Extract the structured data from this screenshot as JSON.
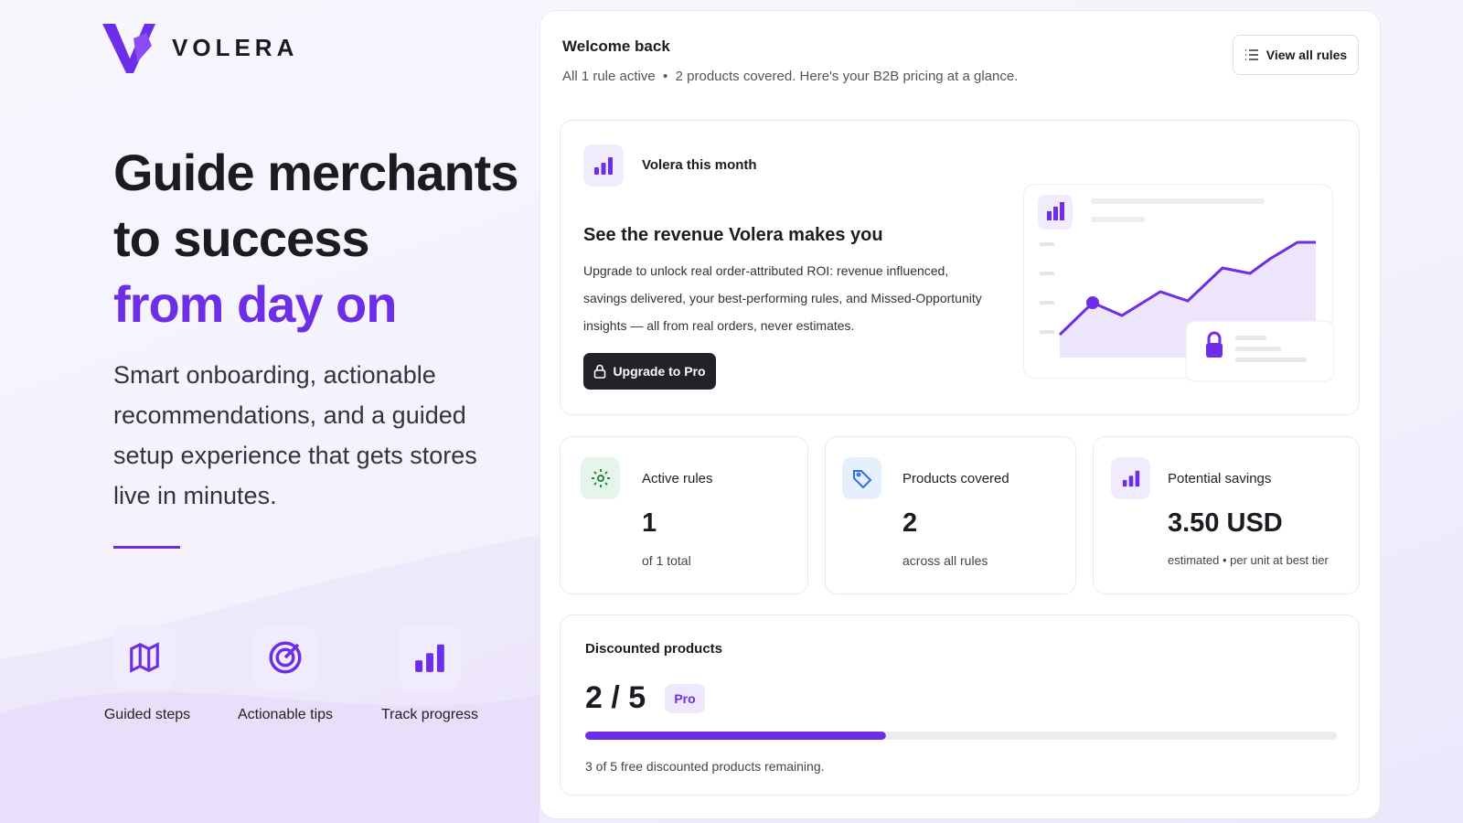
{
  "brand": "VOLERA",
  "hero": {
    "title_line1": "Guide merchants",
    "title_line2": "to success",
    "title_highlight": "from day on",
    "description": "Smart onboarding, actionable recommendations, and a guided setup experience that gets stores live in minutes."
  },
  "features": [
    {
      "label": "Guided steps"
    },
    {
      "label": "Actionable tips"
    },
    {
      "label": "Track progress"
    }
  ],
  "dashboard": {
    "greeting": "Welcome back",
    "summary": "All 1 rule active  •  2 products covered. Here's your B2B pricing at a glance.",
    "view_all_button": "View all rules",
    "promo": {
      "badge": "Volera this month",
      "heading": "See the revenue Volera makes you",
      "body": "Upgrade to unlock real order-attributed ROI: revenue influenced, savings delivered, your best-performing rules, and Missed-Opportunity insights — all from real orders, never estimates.",
      "button": "Upgrade to Pro"
    },
    "stats": [
      {
        "label": "Active rules",
        "value": "1",
        "caption": "of 1 total"
      },
      {
        "label": "Products covered",
        "value": "2",
        "caption": "across all rules"
      },
      {
        "label": "Potential savings",
        "value": "3.50 USD",
        "caption": "estimated • per unit at best tier"
      }
    ],
    "discounted": {
      "title": "Discounted products",
      "count_label": "2 / 5",
      "badge": "Pro",
      "used": 2,
      "limit": 5,
      "note": "3 of 5 free discounted products remaining."
    }
  }
}
